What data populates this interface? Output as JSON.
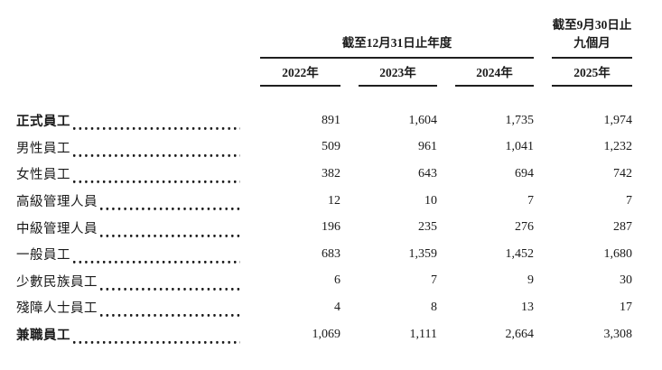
{
  "colors": {
    "text": "#1a1a1a",
    "rule": "#1f1f1f",
    "background": "#ffffff"
  },
  "table": {
    "group_headers": [
      {
        "label": "截至12月31日止年度",
        "lines": [
          "截至12月31日止年度"
        ]
      },
      {
        "label": "截至9月30日止九個月",
        "lines": [
          "截至9月30日止",
          "九個月"
        ]
      }
    ],
    "columns": [
      "2022年",
      "2023年",
      "2024年",
      "2025年"
    ],
    "rows": [
      {
        "label": "正式員工",
        "bold": true,
        "values": [
          "891",
          "1,604",
          "1,735",
          "1,974"
        ]
      },
      {
        "label": "男性員工",
        "bold": false,
        "values": [
          "509",
          "961",
          "1,041",
          "1,232"
        ]
      },
      {
        "label": "女性員工",
        "bold": false,
        "values": [
          "382",
          "643",
          "694",
          "742"
        ]
      },
      {
        "label": "高級管理人員",
        "bold": false,
        "values": [
          "12",
          "10",
          "7",
          "7"
        ]
      },
      {
        "label": "中級管理人員",
        "bold": false,
        "values": [
          "196",
          "235",
          "276",
          "287"
        ]
      },
      {
        "label": "一般員工",
        "bold": false,
        "values": [
          "683",
          "1,359",
          "1,452",
          "1,680"
        ]
      },
      {
        "label": "少數民族員工",
        "bold": false,
        "values": [
          "6",
          "7",
          "9",
          "30"
        ]
      },
      {
        "label": "殘障人士員工",
        "bold": false,
        "values": [
          "4",
          "8",
          "13",
          "17"
        ]
      },
      {
        "label": "兼職員工",
        "bold": true,
        "values": [
          "1,069",
          "1,111",
          "2,664",
          "3,308"
        ]
      }
    ]
  }
}
